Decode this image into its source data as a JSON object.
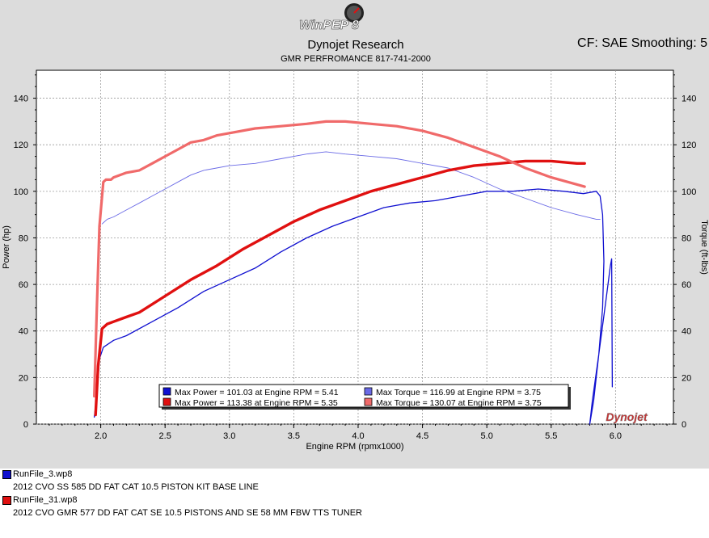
{
  "header": {
    "logo_text": "WinPEP 8",
    "title": "Dynojet Research",
    "subtitle": "GMR PERFROMANCE 817-741-2000",
    "correction": "CF: SAE Smoothing: 5"
  },
  "colors": {
    "run3": "#1010d0",
    "run3_torque": "#6a6ae6",
    "run31": "#e01010",
    "run31_torque": "#f06a6a"
  },
  "chart_data": {
    "type": "line",
    "xlabel": "Engine RPM (rpmx1000)",
    "ylabel_left": "Power (hp)",
    "ylabel_right": "Torque (ft-lbs)",
    "xlim": [
      1.5,
      6.45
    ],
    "ylim": [
      0,
      152
    ],
    "x_ticks": [
      "2.0",
      "2.5",
      "3.0",
      "3.5",
      "4.0",
      "4.5",
      "5.0",
      "5.5",
      "6.0"
    ],
    "y_ticks": [
      "0",
      "20",
      "40",
      "60",
      "80",
      "100",
      "120",
      "140"
    ],
    "grid": true,
    "watermark": "Dynojet",
    "legend": [
      {
        "label": "Max Power = 101.03 at Engine RPM = 5.41",
        "color": "#1010d0"
      },
      {
        "label": "Max Torque = 116.99 at Engine RPM = 3.75",
        "color": "#6a6ae6"
      },
      {
        "label": "Max Power = 113.38 at Engine RPM = 5.35",
        "color": "#e01010"
      },
      {
        "label": "Max Torque = 130.07 at Engine RPM = 3.75",
        "color": "#f06a6a"
      }
    ],
    "series": [
      {
        "run": "RunFile_3.wp8",
        "quantity": "Power",
        "color": "#1010d0",
        "width": 1.3,
        "x": [
          1.95,
          1.97,
          1.99,
          2.02,
          2.1,
          2.2,
          2.4,
          2.6,
          2.8,
          3.0,
          3.2,
          3.4,
          3.6,
          3.8,
          4.0,
          4.2,
          4.4,
          4.6,
          4.8,
          5.0,
          5.2,
          5.4,
          5.6,
          5.75,
          5.85,
          5.88,
          5.9,
          5.91,
          5.9,
          5.87,
          5.82,
          5.8,
          5.83,
          5.87,
          5.93,
          5.96,
          5.97,
          5.975
        ],
        "y": [
          3,
          12,
          28,
          33,
          36,
          38,
          44,
          50,
          57,
          62,
          67,
          74,
          80,
          85,
          89,
          93,
          95,
          96,
          98,
          100,
          100,
          101,
          100,
          99,
          100,
          98,
          90,
          70,
          50,
          30,
          10,
          0,
          10,
          30,
          55,
          68,
          71,
          16
        ]
      },
      {
        "run": "RunFile_3.wp8",
        "quantity": "Torque",
        "color": "#6a6ae6",
        "width": 0.9,
        "x": [
          2.01,
          2.05,
          2.1,
          2.2,
          2.3,
          2.4,
          2.5,
          2.6,
          2.7,
          2.8,
          2.9,
          3.0,
          3.2,
          3.4,
          3.6,
          3.75,
          3.9,
          4.1,
          4.3,
          4.5,
          4.7,
          4.9,
          5.1,
          5.3,
          5.5,
          5.7,
          5.85,
          5.88
        ],
        "y": [
          86,
          88,
          89,
          92,
          95,
          98,
          101,
          104,
          107,
          109,
          110,
          111,
          112,
          114,
          116,
          117,
          116,
          115,
          114,
          112,
          110,
          106,
          101,
          97,
          93,
          90,
          88,
          88
        ]
      },
      {
        "run": "RunFile_31.wp8",
        "quantity": "Power",
        "color": "#e01010",
        "width": 3.4,
        "x": [
          1.96,
          1.98,
          2.01,
          2.05,
          2.1,
          2.2,
          2.3,
          2.5,
          2.7,
          2.9,
          3.1,
          3.3,
          3.5,
          3.7,
          3.9,
          4.1,
          4.3,
          4.5,
          4.7,
          4.9,
          5.1,
          5.3,
          5.5,
          5.7,
          5.76
        ],
        "y": [
          4,
          25,
          41,
          43,
          44,
          46,
          48,
          55,
          62,
          68,
          75,
          81,
          87,
          92,
          96,
          100,
          103,
          106,
          109,
          111,
          112,
          113,
          113,
          112,
          112
        ]
      },
      {
        "run": "RunFile_31.wp8",
        "quantity": "Torque",
        "color": "#f06a6a",
        "width": 3.2,
        "x": [
          1.95,
          1.97,
          1.99,
          2.02,
          2.04,
          2.08,
          2.1,
          2.2,
          2.3,
          2.4,
          2.5,
          2.6,
          2.7,
          2.8,
          2.9,
          3.0,
          3.2,
          3.4,
          3.6,
          3.75,
          3.9,
          4.1,
          4.3,
          4.5,
          4.7,
          4.9,
          5.1,
          5.3,
          5.5,
          5.76
        ],
        "y": [
          12,
          50,
          85,
          104,
          105,
          105,
          106,
          108,
          109,
          112,
          115,
          118,
          121,
          122,
          124,
          125,
          127,
          128,
          129,
          130,
          130,
          129,
          128,
          126,
          123,
          119,
          115,
          110,
          106,
          102
        ]
      }
    ]
  },
  "runs": [
    {
      "file": "RunFile_3.wp8",
      "description": "2012 CVO SS 585 DD FAT CAT 10.5 PISTON KIT BASE LINE",
      "color": "#1010d0"
    },
    {
      "file": "RunFile_31.wp8",
      "description": "2012 CVO GMR 577 DD FAT CAT SE 10.5 PISTONS AND SE 58 MM FBW TTS TUNER",
      "color": "#e01010"
    }
  ]
}
